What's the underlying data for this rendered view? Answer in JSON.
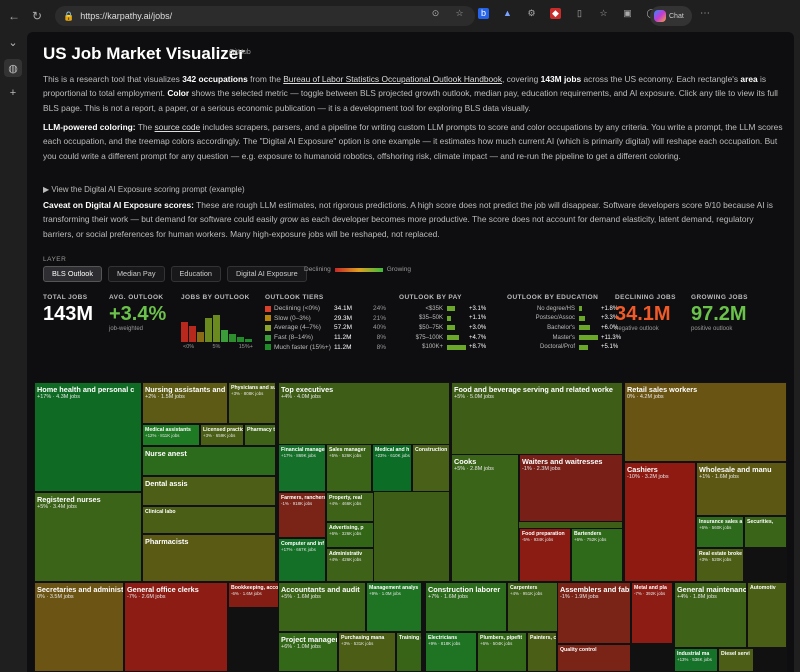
{
  "browser": {
    "url": "https://karpathy.ai/jobs/",
    "copilot_label": "Chat"
  },
  "page": {
    "title": "US Job Market Visualizer",
    "github_link": "GitHub",
    "intro": {
      "p1": "This is a research tool that visualizes",
      "occupations": "342 occupations",
      "p2": "from the",
      "bls_link": "Bureau of Labor Statistics Occupational Outlook Handbook",
      "p3": ", covering",
      "jobs": "143M jobs",
      "p4": "across the US economy. Each rectangle's",
      "area": "area",
      "p5": "is proportional to total employment.",
      "color": "Color",
      "p6": "shows the selected metric — toggle between BLS projected growth outlook, median pay, education requirements, and AI exposure. Click any tile to view its full BLS page. This is not a report, a paper, or a serious economic publication — it is a development tool for exploring BLS data visually."
    },
    "llm": {
      "heading": "LLM-powered coloring:",
      "p1": "The",
      "source_link": "source code",
      "p2": "includes scrapers, parsers, and a pipeline for writing custom LLM prompts to score and color occupations by any criteria. You write a prompt, the LLM scores each occupation, and the treemap colors accordingly. The \"Digital AI Exposure\" option is one example — it estimates how much current AI (which is primarily digital) will reshape each occupation. But you could write a different prompt for any question — e.g. exposure to humanoid robotics, offshoring risk, climate impact — and re-run the pipeline to get a different coloring."
    },
    "details_label": "View the Digital AI Exposure scoring prompt (example)",
    "caveat": {
      "heading": "Caveat on Digital AI Exposure scores:",
      "p1": "These are rough LLM estimates, not rigorous predictions. A high score does not predict the job will disappear. Software developers score 9/10 because AI is transforming their work — but demand for software could easily",
      "grow": "grow",
      "p2": "as each developer becomes more productive. The score does not account for demand elasticity, latent demand, regulatory barriers, or social preferences for human workers. Many high-exposure jobs will be reshaped, not replaced."
    },
    "layer_label": "LAYER",
    "tabs": [
      "BLS Outlook",
      "Median Pay",
      "Education",
      "Digital AI Exposure"
    ],
    "active_tab": "BLS Outlook",
    "legend": {
      "left": "Declining",
      "right": "Growing"
    }
  },
  "stats": {
    "total_jobs": {
      "label": "TOTAL JOBS",
      "value": "143M"
    },
    "avg_outlook": {
      "label": "AVG. OUTLOOK",
      "value": "+3.4%",
      "sub": "job-weighted",
      "color": "#6bc24a"
    },
    "jobs_by_outlook": {
      "label": "JOBS BY OUTLOOK",
      "ticks": [
        "<0%",
        "5%",
        "15%+"
      ],
      "bars": [
        0.72,
        0.58,
        0.34,
        0.85,
        0.96,
        0.42,
        0.3,
        0.18,
        0.1
      ]
    },
    "outlook_tiers": {
      "label": "OUTLOOK TIERS",
      "rows": [
        {
          "name": "Declining (<0%)",
          "value": "34.1M",
          "pct": "24%",
          "color": "#d9412b"
        },
        {
          "name": "Slow (0–3%)",
          "value": "29.3M",
          "pct": "21%",
          "color": "#b8860b"
        },
        {
          "name": "Average (4–7%)",
          "value": "57.2M",
          "pct": "40%",
          "color": "#8aa42c"
        },
        {
          "name": "Fast (8–14%)",
          "value": "11.2M",
          "pct": "8%",
          "color": "#3a9d3a"
        },
        {
          "name": "Much faster (15%+)",
          "value": "11.2M",
          "pct": "8%",
          "color": "#1f8a2a"
        }
      ]
    },
    "outlook_by_pay": {
      "label": "OUTLOOK BY PAY",
      "rows": [
        {
          "name": "<$35K",
          "value": "+3.1%",
          "frac": 0.42
        },
        {
          "name": "$35–50K",
          "value": "+1.1%",
          "frac": 0.18
        },
        {
          "name": "$50–75K",
          "value": "+3.0%",
          "frac": 0.4
        },
        {
          "name": "$75–100K",
          "value": "+4.7%",
          "frac": 0.62
        },
        {
          "name": "$100K+",
          "value": "+8.7%",
          "frac": 1.0
        }
      ]
    },
    "outlook_by_education": {
      "label": "OUTLOOK BY EDUCATION",
      "rows": [
        {
          "name": "No degree/HS",
          "value": "+1.8%",
          "frac": 0.16
        },
        {
          "name": "Postsec/Assoc",
          "value": "+3.3%",
          "frac": 0.29
        },
        {
          "name": "Bachelor's",
          "value": "+6.0%",
          "frac": 0.53
        },
        {
          "name": "Master's",
          "value": "+11.3%",
          "frac": 1.0
        },
        {
          "name": "Doctoral/Prof",
          "value": "+5.1%",
          "frac": 0.45
        }
      ]
    },
    "declining_jobs": {
      "label": "DECLINING JOBS",
      "value": "34.1M",
      "sub": "negative outlook",
      "color": "#f05a28"
    },
    "growing_jobs": {
      "label": "GROWING JOBS",
      "value": "97.2M",
      "sub": "positive outlook",
      "color": "#6bc24a"
    }
  },
  "treemap": [
    {
      "title": "Home health and personal c",
      "sub": "+17% · 4.3M jobs",
      "color": "#0f6b24"
    },
    {
      "title": "Registered nurses",
      "sub": "+5% · 3.4M jobs",
      "color": "#3c6418"
    },
    {
      "title": "Nursing assistants and",
      "sub": "+2% · 1.5M jobs",
      "color": "#5c5a14"
    },
    {
      "title": "Physicians and su",
      "sub": "+3% · 808K jobs",
      "color": "#4f5e16"
    },
    {
      "title": "Medical assistants",
      "sub": "+12% · 811K jobs",
      "color": "#1f7a24"
    },
    {
      "title": "Licensed practic",
      "sub": "+3% · 659K jobs",
      "color": "#4a5e16"
    },
    {
      "title": "Pharmacy t",
      "sub": "",
      "color": "#3e6218"
    },
    {
      "title": "Nurse anest",
      "sub": "",
      "color": "#2c6a1c"
    },
    {
      "title": "Dental assis",
      "sub": "",
      "color": "#4d5e16"
    },
    {
      "title": "Clinical labo",
      "sub": "",
      "color": "#4a5e16"
    },
    {
      "title": "Pharmacists",
      "sub": "",
      "color": "#5a5a14"
    },
    {
      "title": "Top executives",
      "sub": "+4% · 4.0M jobs",
      "color": "#3e5e18"
    },
    {
      "title": "Financial manager",
      "sub": "+17% · 869K jobs",
      "color": "#15702a"
    },
    {
      "title": "Sales manager",
      "sub": "+5% · 526K jobs",
      "color": "#3c6418"
    },
    {
      "title": "Medical and h",
      "sub": "+23% · 610K jobs",
      "color": "#0c6e26"
    },
    {
      "title": "Construction",
      "sub": "",
      "color": "#486018"
    },
    {
      "title": "Farmers, ranchers,",
      "sub": "-1% · 918K jobs",
      "color": "#7a2418"
    },
    {
      "title": "Property, real",
      "sub": "+4% · 466K jobs",
      "color": "#3e6218"
    },
    {
      "title": "Advertising, p",
      "sub": "+6% · 326K jobs",
      "color": "#326616"
    },
    {
      "title": "Computer and inf",
      "sub": "+17% · 667K jobs",
      "color": "#137026"
    },
    {
      "title": "Administrativ",
      "sub": "+4% · 426K jobs",
      "color": "#3e6218"
    },
    {
      "title": "Food and beverage serving and related worke",
      "sub": "+5% · 5.0M jobs",
      "color": "#3e5e18"
    },
    {
      "title": "Cooks",
      "sub": "+5% · 2.8M jobs",
      "color": "#3a6418"
    },
    {
      "title": "Waiters and waitresses",
      "sub": "-1% · 2.3M jobs",
      "color": "#782018"
    },
    {
      "title": "Food preparation",
      "sub": "-5% · 934K jobs",
      "color": "#8a1c14"
    },
    {
      "title": "Bartenders",
      "sub": "+6% · 752K jobs",
      "color": "#2f6a1a"
    },
    {
      "title": "Retail sales workers",
      "sub": "0% · 4.2M jobs",
      "color": "#6a5414"
    },
    {
      "title": "Cashiers",
      "sub": "-10% · 3.2M jobs",
      "color": "#8e1a12"
    },
    {
      "title": "Wholesale and manu",
      "sub": "+1% · 1.6M jobs",
      "color": "#5c5814"
    },
    {
      "title": "Insurance sales a",
      "sub": "+6% · 560K jobs",
      "color": "#2e6a1c"
    },
    {
      "title": "Securities,",
      "sub": "",
      "color": "#3a6418"
    },
    {
      "title": "Real estate broke",
      "sub": "+3% · 520K jobs",
      "color": "#4c5e16"
    },
    {
      "title": "Secretaries and administ",
      "sub": "0% · 3.5M jobs",
      "color": "#6c5414"
    },
    {
      "title": "General office clerks",
      "sub": "-7% · 2.6M jobs",
      "color": "#8c1c14"
    },
    {
      "title": "Bookkeeping, accou",
      "sub": "-6% · 1.6M jobs",
      "color": "#841e14"
    },
    {
      "title": "Accountants and audit",
      "sub": "+5% · 1.6M jobs",
      "color": "#3c6418"
    },
    {
      "title": "Management analys",
      "sub": "+9% · 1.0M jobs",
      "color": "#1f7424"
    },
    {
      "title": "Project managemen",
      "sub": "+6% · 1.0M jobs",
      "color": "#336818"
    },
    {
      "title": "Purchasing mana",
      "sub": "+3% · 531K jobs",
      "color": "#4c5e16"
    },
    {
      "title": "Training and",
      "sub": "",
      "color": "#386418"
    },
    {
      "title": "Construction laborer",
      "sub": "+7% · 1.6M jobs",
      "color": "#2d6c1c"
    },
    {
      "title": "Carpenters",
      "sub": "+4% · 951K jobs",
      "color": "#3e6218"
    },
    {
      "title": "Electricians",
      "sub": "+9% · 818K jobs",
      "color": "#1f7424"
    },
    {
      "title": "Plumbers, pipefit",
      "sub": "+6% · 504K jobs",
      "color": "#336818"
    },
    {
      "title": "Painters, c",
      "sub": "",
      "color": "#4a5e16"
    },
    {
      "title": "Assemblers and fabr",
      "sub": "-1% · 1.9M jobs",
      "color": "#7a2418"
    },
    {
      "title": "Metal and pla",
      "sub": "-7% · 392K jobs",
      "color": "#8c1c14"
    },
    {
      "title": "Quality control",
      "sub": "",
      "color": "#7a2418"
    },
    {
      "title": "General maintenanc",
      "sub": "+4% · 1.8M jobs",
      "color": "#3e6218"
    },
    {
      "title": "Automotiv",
      "sub": "",
      "color": "#4a5e16"
    },
    {
      "title": "Industrial ma",
      "sub": "+13% · 536K jobs",
      "color": "#157228"
    },
    {
      "title": "Diesel servi",
      "sub": "",
      "color": "#4c5e16"
    }
  ]
}
